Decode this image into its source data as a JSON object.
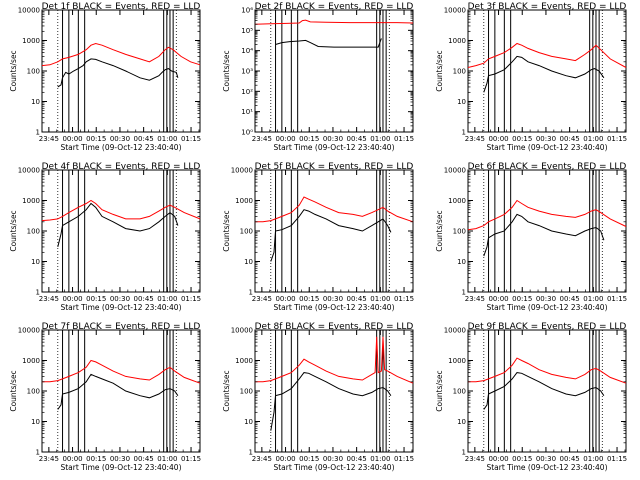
{
  "figure": {
    "subtitle": "BLACK = Events, RED = LLD",
    "xlabel": "Start Time (09-Oct-12 23:40:40)",
    "ylabel": "Counts/sec",
    "x_tick_labels": [
      "23:45",
      "00:00",
      "00:15",
      "00:30",
      "00:45",
      "01:00",
      "01:15"
    ],
    "colors": {
      "events": "#000000",
      "lld": "#ff0000"
    }
  },
  "chart_data": [
    {
      "type": "line",
      "title": "Det 1f BLACK = Events, RED = LLD",
      "xlabel": "Start Time (09-Oct-12 23:40:40)",
      "ylabel": "Counts/sec",
      "x_unit": "minutes from 23:40:40",
      "xlim": [
        0,
        100
      ],
      "ylim": [
        1,
        10000
      ],
      "y_scale": "log",
      "y_tick_labels": [
        "1",
        "10",
        "100",
        "1000",
        "10000"
      ],
      "vlines": [
        13,
        17,
        23,
        27,
        77,
        79,
        81,
        83
      ],
      "dotted_lines": [
        10,
        85
      ],
      "series": [
        {
          "name": "Events",
          "color": "#000000",
          "x": [
            10,
            12,
            13,
            15,
            17,
            20,
            23,
            26,
            28,
            31,
            34,
            38,
            45,
            53,
            62,
            68,
            74,
            76,
            78,
            80,
            82,
            85,
            86
          ],
          "y": [
            30,
            35,
            60,
            90,
            80,
            100,
            120,
            150,
            200,
            250,
            240,
            200,
            150,
            100,
            60,
            50,
            70,
            90,
            110,
            120,
            100,
            90,
            60
          ]
        },
        {
          "name": "LLD",
          "color": "#ff0000",
          "x": [
            0,
            5,
            10,
            13,
            17,
            23,
            28,
            31,
            34,
            38,
            45,
            53,
            62,
            68,
            74,
            78,
            80,
            83,
            88,
            94,
            100
          ],
          "y": [
            150,
            160,
            200,
            250,
            280,
            350,
            500,
            700,
            800,
            700,
            500,
            350,
            250,
            200,
            300,
            500,
            600,
            500,
            300,
            200,
            160
          ]
        }
      ]
    },
    {
      "type": "line",
      "title": "Det 2f BLACK = Events, RED = LLD",
      "xlabel": "Start Time (09-Oct-12 23:40:40)",
      "ylabel": "Counts/sec",
      "x_unit": "minutes from 23:40:40",
      "xlim": [
        0,
        100
      ],
      "ylim": [
        1,
        1000000
      ],
      "y_scale": "log",
      "y_tick_labels": [
        "10⁰",
        "10¹",
        "10²",
        "10³",
        "10⁴",
        "10⁵",
        "10⁶"
      ],
      "vlines": [
        13,
        17,
        23,
        27,
        77,
        79,
        81,
        83
      ],
      "dotted_lines": [
        10,
        85
      ],
      "series": [
        {
          "name": "Events",
          "color": "#000000",
          "x": [
            13,
            17,
            22,
            28,
            32,
            35,
            40,
            50,
            60,
            70,
            78,
            80
          ],
          "y": [
            20000,
            25000,
            28000,
            30000,
            32000,
            25000,
            16000,
            15000,
            15000,
            15000,
            15000,
            40000
          ]
        },
        {
          "name": "LLD",
          "color": "#ff0000",
          "x": [
            0,
            10,
            20,
            28,
            30,
            32,
            35,
            45,
            60,
            75,
            90,
            100
          ],
          "y": [
            200000,
            210000,
            220000,
            230000,
            300000,
            320000,
            260000,
            250000,
            240000,
            240000,
            240000,
            230000
          ]
        }
      ]
    },
    {
      "type": "line",
      "title": "Det 3f BLACK = Events, RED = LLD",
      "xlabel": "Start Time (09-Oct-12 23:40:40)",
      "ylabel": "Counts/sec",
      "x_unit": "minutes from 23:40:40",
      "xlim": [
        0,
        100
      ],
      "ylim": [
        1,
        10000
      ],
      "y_scale": "log",
      "y_tick_labels": [
        "1",
        "10",
        "100",
        "1000",
        "10000"
      ],
      "vlines": [
        13,
        17,
        23,
        27,
        77,
        79,
        81,
        83
      ],
      "dotted_lines": [
        10,
        85
      ],
      "series": [
        {
          "name": "Events",
          "color": "#000000",
          "x": [
            10,
            12,
            13,
            17,
            23,
            28,
            31,
            34,
            38,
            45,
            53,
            62,
            68,
            74,
            78,
            80,
            83,
            86
          ],
          "y": [
            20,
            40,
            70,
            80,
            110,
            200,
            300,
            280,
            200,
            150,
            100,
            70,
            60,
            80,
            110,
            120,
            100,
            60
          ]
        },
        {
          "name": "LLD",
          "color": "#ff0000",
          "x": [
            0,
            5,
            10,
            13,
            17,
            23,
            28,
            31,
            34,
            38,
            45,
            53,
            62,
            68,
            74,
            78,
            81,
            84,
            90,
            100
          ],
          "y": [
            130,
            150,
            180,
            250,
            300,
            400,
            600,
            800,
            700,
            550,
            400,
            300,
            250,
            220,
            350,
            500,
            700,
            500,
            250,
            130
          ]
        }
      ]
    },
    {
      "type": "line",
      "title": "Det 4f BLACK = Events, RED = LLD",
      "xlabel": "Start Time (09-Oct-12 23:40:40)",
      "ylabel": "Counts/sec",
      "x_unit": "minutes from 23:40:40",
      "xlim": [
        0,
        100
      ],
      "ylim": [
        1,
        10000
      ],
      "y_scale": "log",
      "y_tick_labels": [
        "1",
        "10",
        "100",
        "1000",
        "10000"
      ],
      "vlines": [
        13,
        17,
        23,
        27,
        77,
        79,
        81,
        83
      ],
      "dotted_lines": [
        10,
        85
      ],
      "series": [
        {
          "name": "Events",
          "color": "#000000",
          "x": [
            10,
            12,
            13,
            17,
            23,
            28,
            31,
            34,
            38,
            45,
            53,
            62,
            68,
            74,
            78,
            81,
            84,
            86
          ],
          "y": [
            30,
            80,
            150,
            200,
            300,
            500,
            800,
            600,
            300,
            200,
            120,
            100,
            120,
            200,
            300,
            400,
            300,
            150
          ]
        },
        {
          "name": "LLD",
          "color": "#ff0000",
          "x": [
            0,
            5,
            10,
            13,
            17,
            23,
            28,
            31,
            34,
            38,
            45,
            53,
            62,
            68,
            74,
            78,
            81,
            84,
            90,
            100
          ],
          "y": [
            220,
            230,
            250,
            300,
            400,
            600,
            800,
            1000,
            800,
            500,
            350,
            250,
            250,
            300,
            450,
            600,
            700,
            600,
            400,
            250
          ]
        }
      ]
    },
    {
      "type": "line",
      "title": "Det 5f BLACK = Events, RED = LLD",
      "xlabel": "Start Time (09-Oct-12 23:40:40)",
      "ylabel": "Counts/sec",
      "x_unit": "minutes from 23:40:40",
      "xlim": [
        0,
        100
      ],
      "ylim": [
        1,
        10000
      ],
      "y_scale": "log",
      "y_tick_labels": [
        "1",
        "10",
        "100",
        "1000",
        "10000"
      ],
      "vlines": [
        13,
        17,
        23,
        27,
        77,
        79,
        81,
        83
      ],
      "dotted_lines": [
        10,
        85
      ],
      "series": [
        {
          "name": "Events",
          "color": "#000000",
          "x": [
            10,
            12,
            13,
            17,
            23,
            28,
            31,
            34,
            38,
            45,
            53,
            62,
            68,
            74,
            78,
            81,
            84,
            86
          ],
          "y": [
            10,
            20,
            100,
            110,
            150,
            300,
            500,
            450,
            350,
            250,
            150,
            120,
            100,
            150,
            200,
            250,
            150,
            90
          ]
        },
        {
          "name": "LLD",
          "color": "#ff0000",
          "x": [
            0,
            5,
            10,
            13,
            17,
            23,
            28,
            31,
            34,
            38,
            45,
            53,
            62,
            68,
            74,
            78,
            81,
            84,
            90,
            100
          ],
          "y": [
            200,
            200,
            220,
            250,
            300,
            400,
            700,
            1300,
            1100,
            900,
            600,
            400,
            350,
            300,
            400,
            500,
            600,
            450,
            300,
            200
          ]
        }
      ]
    },
    {
      "type": "line",
      "title": "Det 6f BLACK = Events, RED = LLD",
      "xlabel": "Start Time (09-Oct-12 23:40:40)",
      "ylabel": "Counts/sec",
      "x_unit": "minutes from 23:40:40",
      "xlim": [
        0,
        100
      ],
      "ylim": [
        1,
        10000
      ],
      "y_scale": "log",
      "y_tick_labels": [
        "1",
        "10",
        "100",
        "1000",
        "10000"
      ],
      "vlines": [
        13,
        17,
        23,
        27,
        77,
        79,
        81,
        83
      ],
      "dotted_lines": [
        10,
        85
      ],
      "series": [
        {
          "name": "Events",
          "color": "#000000",
          "x": [
            10,
            12,
            13,
            17,
            23,
            28,
            31,
            34,
            38,
            45,
            53,
            62,
            68,
            74,
            78,
            81,
            84,
            86
          ],
          "y": [
            15,
            30,
            60,
            80,
            100,
            200,
            350,
            300,
            200,
            150,
            100,
            80,
            70,
            100,
            120,
            130,
            100,
            50
          ]
        },
        {
          "name": "LLD",
          "color": "#ff0000",
          "x": [
            0,
            5,
            10,
            13,
            17,
            23,
            28,
            31,
            34,
            38,
            45,
            53,
            62,
            68,
            74,
            78,
            81,
            84,
            90,
            100
          ],
          "y": [
            110,
            120,
            150,
            200,
            250,
            350,
            600,
            1000,
            800,
            600,
            450,
            350,
            300,
            280,
            350,
            450,
            500,
            400,
            250,
            140
          ]
        }
      ]
    },
    {
      "type": "line",
      "title": "Det 7f BLACK = Events, RED = LLD",
      "xlabel": "Start Time (09-Oct-12 23:40:40)",
      "ylabel": "Counts/sec",
      "x_unit": "minutes from 23:40:40",
      "xlim": [
        0,
        100
      ],
      "ylim": [
        1,
        10000
      ],
      "y_scale": "log",
      "y_tick_labels": [
        "1",
        "10",
        "100",
        "1000",
        "10000"
      ],
      "vlines": [
        13,
        17,
        23,
        27,
        77,
        79,
        81,
        83
      ],
      "dotted_lines": [
        10,
        85
      ],
      "series": [
        {
          "name": "Events",
          "color": "#000000",
          "x": [
            10,
            12,
            13,
            17,
            23,
            28,
            31,
            34,
            38,
            45,
            53,
            62,
            68,
            74,
            78,
            81,
            84,
            86
          ],
          "y": [
            25,
            35,
            80,
            90,
            120,
            200,
            350,
            300,
            250,
            180,
            100,
            70,
            60,
            80,
            110,
            120,
            100,
            70
          ]
        },
        {
          "name": "LLD",
          "color": "#ff0000",
          "x": [
            0,
            5,
            10,
            13,
            17,
            23,
            28,
            31,
            34,
            38,
            45,
            53,
            62,
            68,
            74,
            78,
            81,
            84,
            90,
            100
          ],
          "y": [
            200,
            200,
            220,
            250,
            300,
            400,
            600,
            1000,
            900,
            700,
            450,
            300,
            250,
            230,
            350,
            500,
            600,
            450,
            280,
            180
          ]
        }
      ]
    },
    {
      "type": "line",
      "title": "Det 8f BLACK = Events, RED = LLD",
      "xlabel": "Start Time (09-Oct-12 23:40:40)",
      "ylabel": "Counts/sec",
      "x_unit": "minutes from 23:40:40",
      "xlim": [
        0,
        100
      ],
      "ylim": [
        1,
        10000
      ],
      "y_scale": "log",
      "y_tick_labels": [
        "1",
        "10",
        "100",
        "1000",
        "10000"
      ],
      "vlines": [
        13,
        17,
        23,
        27,
        77,
        79,
        81,
        83
      ],
      "dotted_lines": [
        10,
        85
      ],
      "series": [
        {
          "name": "Events",
          "color": "#000000",
          "x": [
            10,
            12,
            13,
            17,
            23,
            28,
            31,
            34,
            38,
            45,
            53,
            62,
            68,
            74,
            78,
            81,
            84,
            86
          ],
          "y": [
            5,
            20,
            70,
            80,
            120,
            250,
            400,
            380,
            300,
            200,
            120,
            80,
            70,
            90,
            120,
            130,
            100,
            70
          ]
        },
        {
          "name": "LLD",
          "color": "#ff0000",
          "x": [
            0,
            5,
            10,
            13,
            17,
            23,
            28,
            31,
            34,
            38,
            45,
            53,
            62,
            68,
            74,
            76,
            77,
            78,
            80,
            81,
            82,
            84,
            90,
            100
          ],
          "y": [
            200,
            200,
            220,
            250,
            300,
            400,
            700,
            1100,
            900,
            700,
            450,
            300,
            250,
            230,
            350,
            400,
            6000,
            400,
            450,
            6000,
            500,
            450,
            300,
            180
          ]
        }
      ]
    },
    {
      "type": "line",
      "title": "Det 9f BLACK = Events, RED = LLD",
      "xlabel": "Start Time (09-Oct-12 23:40:40)",
      "ylabel": "Counts/sec",
      "x_unit": "minutes from 23:40:40",
      "xlim": [
        0,
        100
      ],
      "ylim": [
        1,
        10000
      ],
      "y_scale": "log",
      "y_tick_labels": [
        "1",
        "10",
        "100",
        "1000",
        "10000"
      ],
      "vlines": [
        13,
        17,
        23,
        27,
        77,
        79,
        81,
        83
      ],
      "dotted_lines": [
        10,
        85
      ],
      "series": [
        {
          "name": "Events",
          "color": "#000000",
          "x": [
            10,
            12,
            13,
            17,
            23,
            28,
            31,
            34,
            38,
            45,
            53,
            62,
            68,
            74,
            78,
            81,
            84,
            86
          ],
          "y": [
            25,
            35,
            80,
            100,
            140,
            250,
            400,
            380,
            300,
            200,
            120,
            80,
            70,
            90,
            120,
            130,
            100,
            70
          ]
        },
        {
          "name": "LLD",
          "color": "#ff0000",
          "x": [
            0,
            5,
            10,
            13,
            17,
            23,
            28,
            31,
            34,
            38,
            45,
            53,
            62,
            68,
            74,
            78,
            81,
            84,
            90,
            100
          ],
          "y": [
            200,
            200,
            220,
            250,
            300,
            400,
            700,
            1200,
            1000,
            800,
            500,
            350,
            280,
            250,
            350,
            500,
            550,
            450,
            280,
            180
          ]
        }
      ]
    }
  ]
}
